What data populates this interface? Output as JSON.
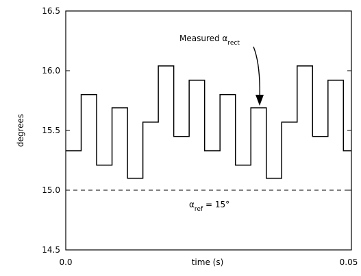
{
  "chart_data": {
    "type": "line",
    "step": true,
    "xlabel": "time (s)",
    "ylabel": "degrees",
    "xlim": [
      0.0,
      0.05
    ],
    "ylim": [
      14.5,
      16.5
    ],
    "x_tick_labels": [
      "0.0",
      "0.05"
    ],
    "y_tick_values": [
      14.5,
      15.0,
      15.5,
      16.0,
      16.5
    ],
    "y_tick_labels": [
      "14.5",
      "15.0",
      "15.5",
      "16.0",
      "16.5"
    ],
    "grid": false,
    "legend": false,
    "series": [
      {
        "values": [
          15.33,
          15.8,
          15.21,
          15.69,
          15.1,
          15.57,
          16.04,
          15.45,
          15.92,
          15.33,
          15.8,
          15.21,
          15.69,
          15.1,
          15.57,
          16.04,
          15.45,
          15.92,
          15.33
        ],
        "segment_duration": 0.0027,
        "color": "#000000"
      }
    ],
    "reference_line": {
      "y": 15.0,
      "style": "dashed",
      "color": "#000000"
    },
    "annotations": {
      "measured_main": "Measured α",
      "measured_sub": "rect",
      "ref_main": "α",
      "ref_sub": "ref",
      "ref_tail": " = 15°"
    }
  }
}
